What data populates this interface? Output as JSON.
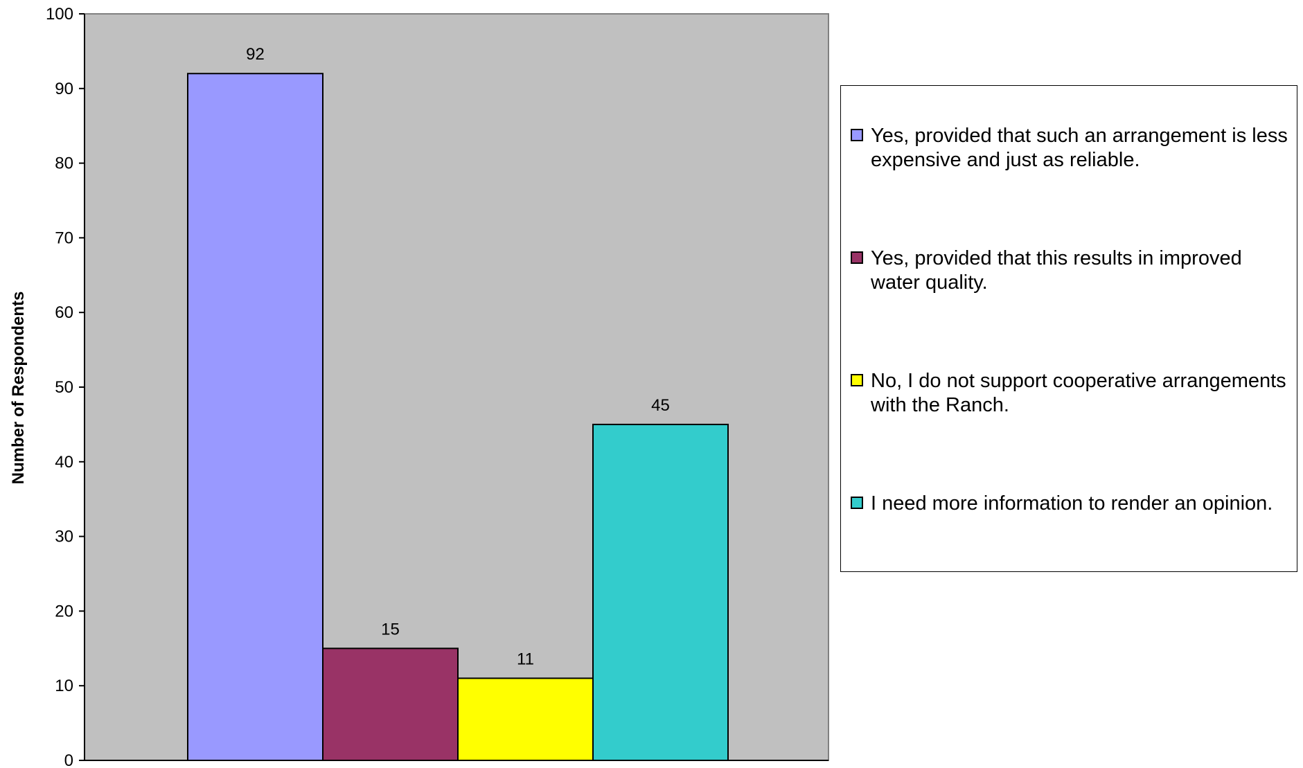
{
  "chart_data": {
    "type": "bar",
    "title": "",
    "xlabel": "",
    "ylabel": "Number of Respondents",
    "ylim": [
      0,
      100
    ],
    "yticks": [
      0,
      10,
      20,
      30,
      40,
      50,
      60,
      70,
      80,
      90,
      100
    ],
    "plot_background": "#C0C0C0",
    "grid": false,
    "legend_position": "right",
    "series": [
      {
        "name": "Yes, provided that such an arrangement is less expensive and just as reliable.",
        "value": 92,
        "color": "#9999FF"
      },
      {
        "name": "Yes, provided that this results in improved water quality.",
        "value": 15,
        "color": "#993366"
      },
      {
        "name": "No, I do not support cooperative arrangements with the Ranch.",
        "value": 11,
        "color": "#FFFF00"
      },
      {
        "name": "I need more information to render an opinion.",
        "value": 45,
        "color": "#33CCCC"
      }
    ],
    "data_labels": [
      "92",
      "15",
      "11",
      "45"
    ]
  }
}
